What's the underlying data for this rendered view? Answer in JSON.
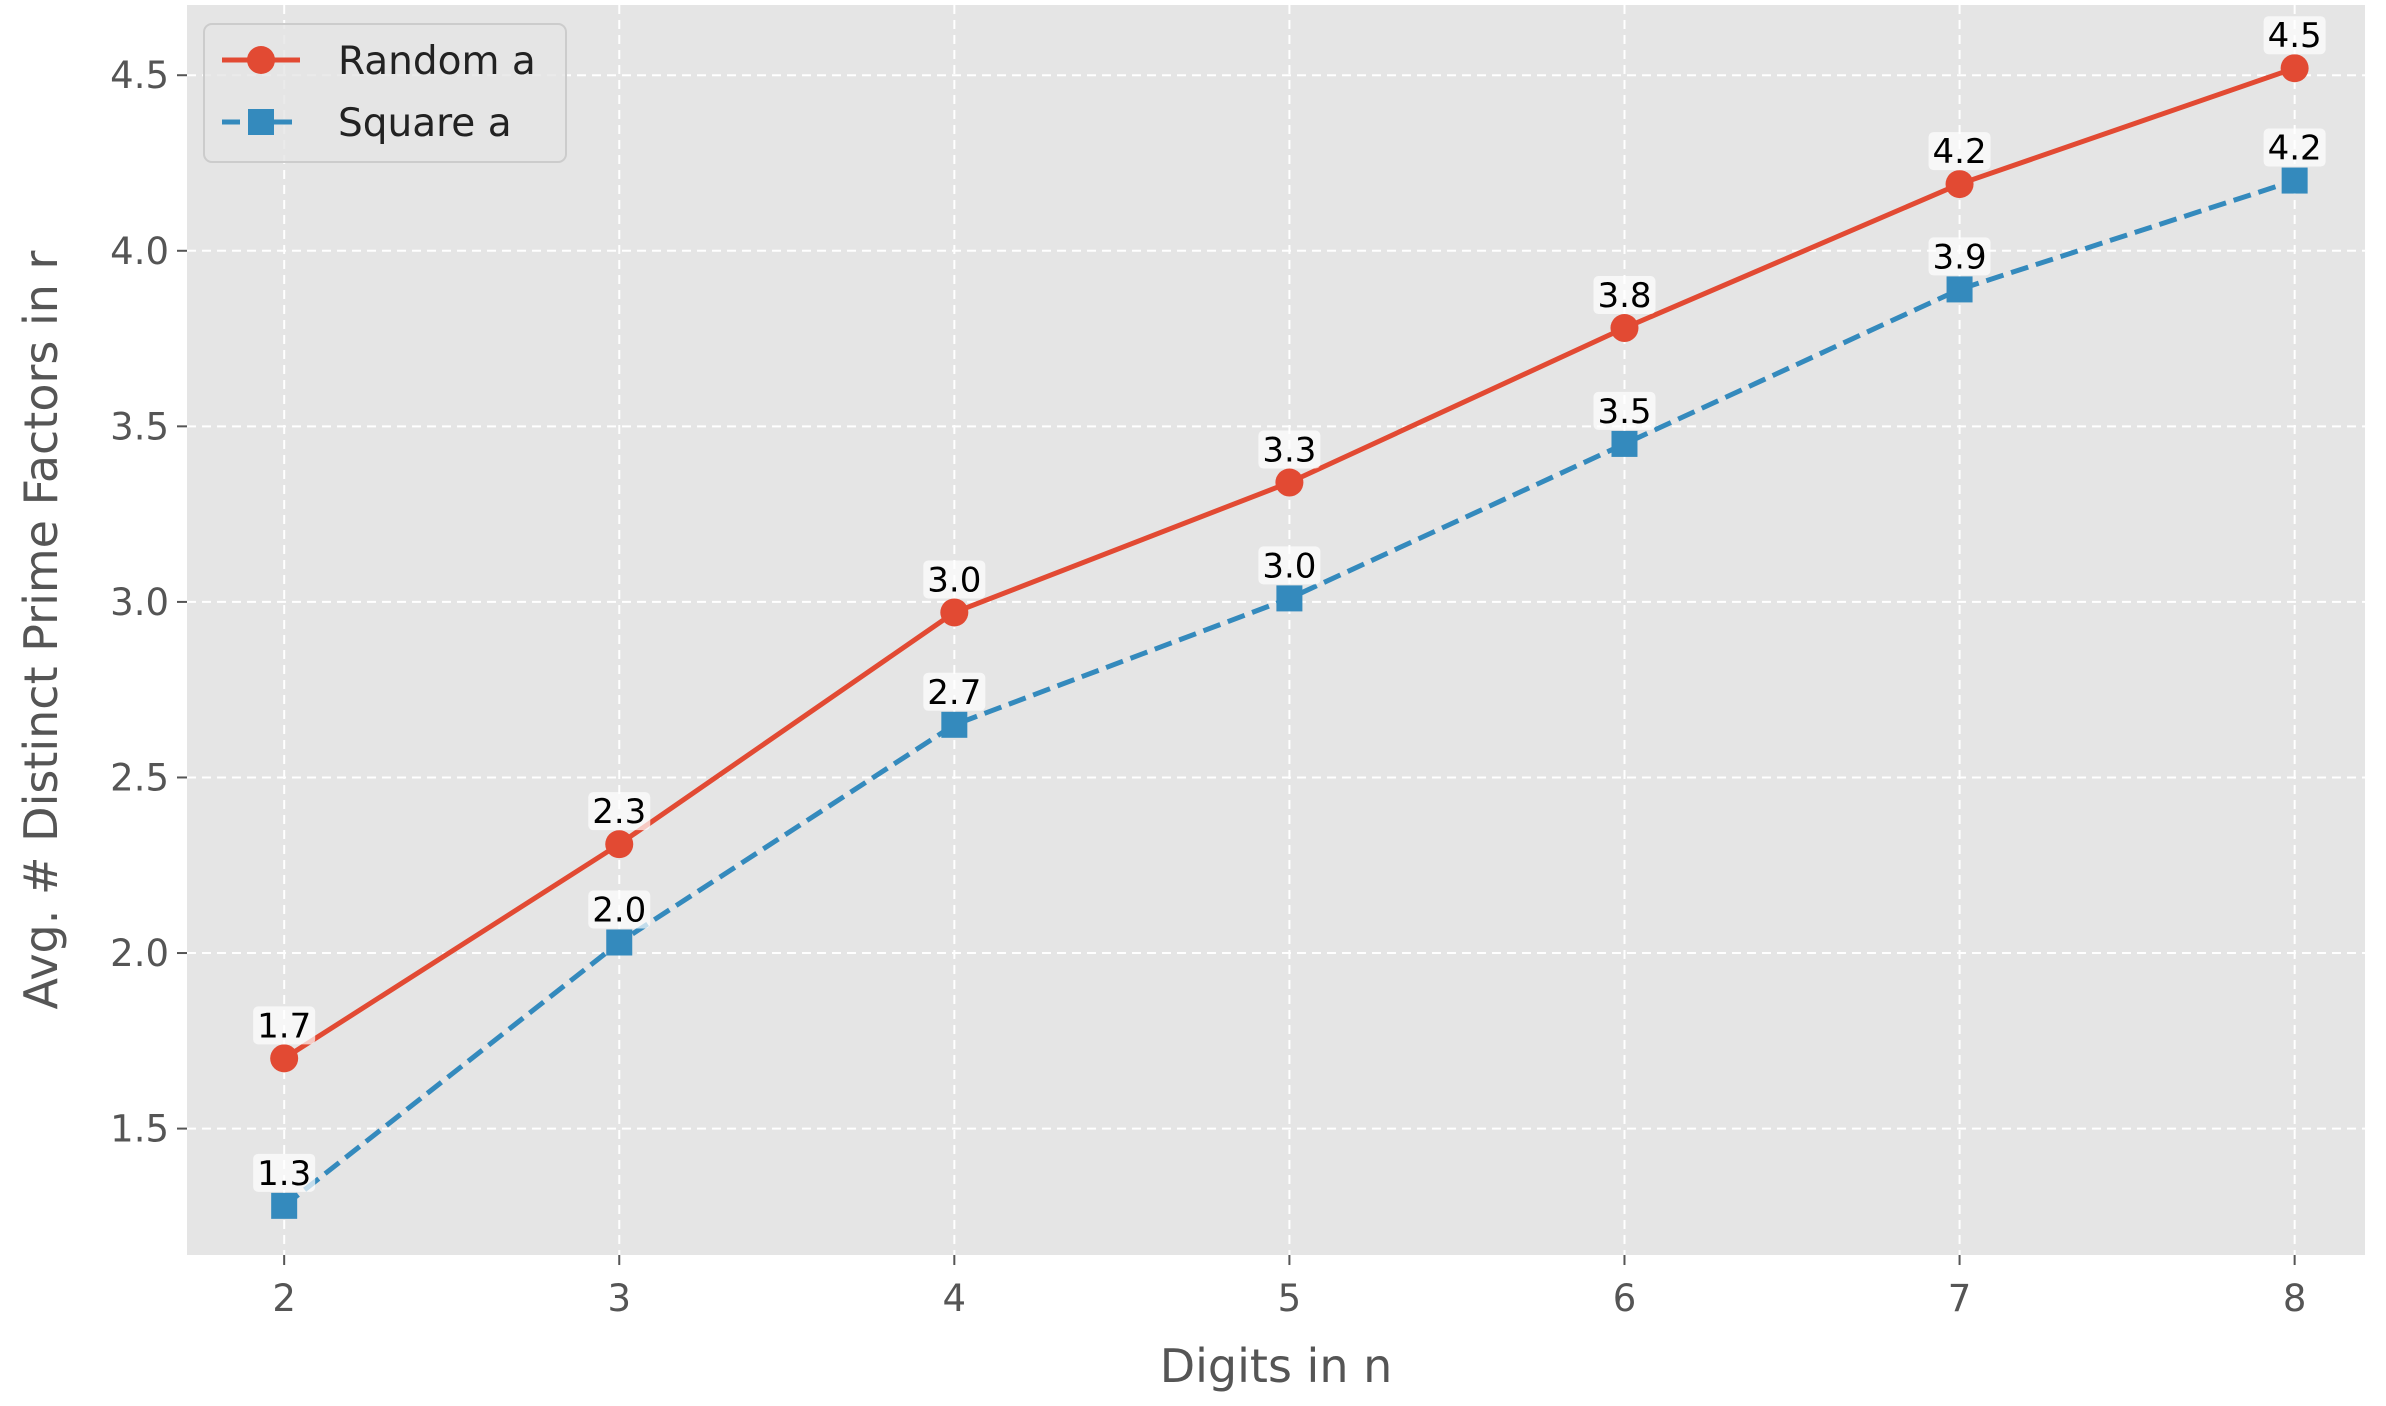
{
  "chart_data": {
    "type": "line",
    "xlabel": "Digits in n",
    "ylabel": "Avg. # Distinct Prime Factors in r",
    "x": [
      2,
      3,
      4,
      5,
      6,
      7,
      8
    ],
    "xlim": [
      1.71,
      8.21
    ],
    "ylim": [
      1.14,
      4.7
    ],
    "x_ticks": [
      "2",
      "3",
      "4",
      "5",
      "6",
      "7",
      "8"
    ],
    "y_ticks": [
      "1.5",
      "2.0",
      "2.5",
      "3.0",
      "3.5",
      "4.0",
      "4.5"
    ],
    "grid": true,
    "legend_position": "top-left",
    "series": [
      {
        "name": "Random a",
        "color": "#E24A33",
        "marker": "circle",
        "line_style": "solid",
        "values": [
          1.7,
          2.31,
          2.97,
          3.34,
          3.78,
          4.19,
          4.52
        ],
        "labels": [
          "1.7",
          "2.3",
          "3.0",
          "3.3",
          "3.8",
          "4.2",
          "4.5"
        ]
      },
      {
        "name": "Square a",
        "color": "#348ABD",
        "marker": "square",
        "line_style": "dashed",
        "values": [
          1.28,
          2.03,
          2.65,
          3.01,
          3.45,
          3.89,
          4.2
        ],
        "labels": [
          "1.3",
          "2.0",
          "2.7",
          "3.0",
          "3.5",
          "3.9",
          "4.2"
        ]
      }
    ]
  }
}
